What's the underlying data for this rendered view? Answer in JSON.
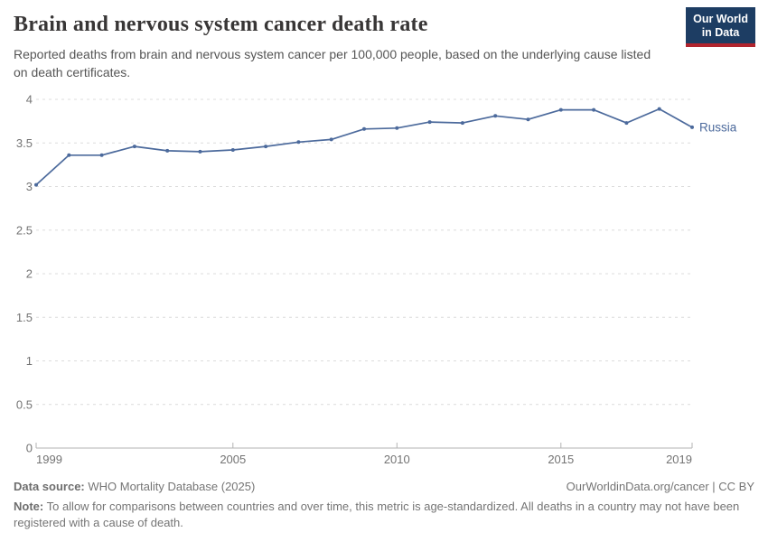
{
  "header": {
    "title": "Brain and nervous system cancer death rate",
    "subtitle": "Reported deaths from brain and nervous system cancer per 100,000 people, based on the underlying cause listed on death certificates.",
    "logo": {
      "line1": "Our World",
      "line2": "in Data",
      "bg_color": "#1d3d63",
      "accent_color": "#b1242e"
    }
  },
  "chart_data": {
    "type": "line",
    "title": "Brain and nervous system cancer death rate",
    "xlabel": "",
    "ylabel": "",
    "xlim": [
      1999,
      2019
    ],
    "ylim": [
      0,
      4
    ],
    "x_ticks": [
      1999,
      2005,
      2010,
      2015,
      2019
    ],
    "y_ticks": [
      0,
      0.5,
      1,
      1.5,
      2,
      2.5,
      3,
      3.5,
      4
    ],
    "grid": "horizontal-dashed",
    "legend_position": "end-of-line-label",
    "series": [
      {
        "name": "Russia",
        "color": "#4c6a9c",
        "x": [
          1999,
          2000,
          2001,
          2002,
          2003,
          2004,
          2005,
          2006,
          2007,
          2008,
          2009,
          2010,
          2011,
          2012,
          2013,
          2014,
          2015,
          2016,
          2017,
          2018,
          2019
        ],
        "values": [
          3.02,
          3.36,
          3.36,
          3.46,
          3.41,
          3.4,
          3.42,
          3.46,
          3.51,
          3.54,
          3.66,
          3.67,
          3.74,
          3.73,
          3.81,
          3.77,
          3.88,
          3.88,
          3.73,
          3.89,
          3.68
        ]
      }
    ]
  },
  "footer": {
    "datasource_label": "Data source:",
    "datasource_value": " WHO Mortality Database (2025)",
    "attribution": "OurWorldinData.org/cancer | CC BY",
    "note_label": "Note:",
    "note_value": " To allow for comparisons between countries and over time, this metric is age-standardized. All deaths in a country may not have been registered with a cause of death."
  }
}
